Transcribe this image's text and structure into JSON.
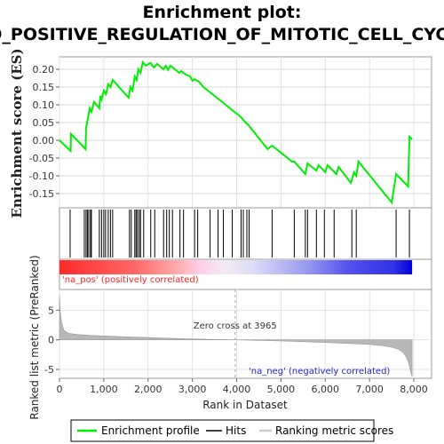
{
  "chart_data": [
    {
      "type": "line",
      "title": "Enrichment plot:",
      "subtitle": "GO_POSITIVE_REGULATION_OF_MITOTIC_CELL_CYCLE",
      "ylabel": "Enrichment score (ES)",
      "xlim": [
        0,
        8400
      ],
      "ylim": [
        -0.19,
        0.235
      ],
      "yticks": [
        -0.15,
        -0.1,
        -0.05,
        0.0,
        0.05,
        0.1,
        0.15,
        0.2
      ],
      "ytick_labels": [
        "-0.15",
        "-0.10",
        "-0.05",
        "0.00",
        "0.05",
        "0.10",
        "0.15",
        "0.20"
      ],
      "grid": true,
      "color": "#00ee00",
      "series": [
        {
          "name": "Enrichment profile",
          "x": [
            0,
            250,
            260,
            590,
            600,
            640,
            680,
            720,
            780,
            900,
            920,
            950,
            1000,
            1050,
            1100,
            1150,
            1200,
            1560,
            1600,
            1650,
            1700,
            1740,
            1780,
            1830,
            1880,
            1950,
            2050,
            2130,
            2200,
            2350,
            2400,
            2450,
            2500,
            2560,
            2700,
            2750,
            2850,
            2950,
            3000,
            3050,
            3150,
            3250,
            3400,
            3550,
            3700,
            3900,
            4100,
            4200,
            4250,
            4700,
            4800,
            5250,
            5300,
            5550,
            5600,
            5800,
            5850,
            6000,
            6050,
            6250,
            6300,
            6580,
            6650,
            6700,
            6750,
            7500,
            7600,
            7870,
            7900,
            7960
          ],
          "y": [
            0.0,
            -0.03,
            0.018,
            -0.025,
            0.035,
            0.06,
            0.09,
            0.08,
            0.108,
            0.09,
            0.125,
            0.115,
            0.14,
            0.13,
            0.158,
            0.15,
            0.17,
            0.12,
            0.15,
            0.14,
            0.18,
            0.17,
            0.2,
            0.19,
            0.22,
            0.21,
            0.218,
            0.205,
            0.215,
            0.2,
            0.21,
            0.198,
            0.21,
            0.205,
            0.19,
            0.195,
            0.185,
            0.18,
            0.168,
            0.172,
            0.165,
            0.15,
            0.135,
            0.12,
            0.105,
            0.085,
            0.065,
            0.05,
            0.045,
            -0.025,
            -0.015,
            -0.06,
            -0.06,
            -0.095,
            -0.065,
            -0.085,
            -0.07,
            -0.09,
            -0.07,
            -0.095,
            -0.075,
            -0.12,
            -0.09,
            -0.1,
            -0.06,
            -0.175,
            -0.095,
            -0.13,
            0.01,
            0.003
          ]
        }
      ]
    },
    {
      "type": "scatter",
      "name": "Hits",
      "x": [
        240,
        560,
        600,
        630,
        660,
        700,
        720,
        900,
        950,
        1000,
        1040,
        1100,
        1150,
        1200,
        1580,
        1620,
        1700,
        1730,
        1760,
        1800,
        1830,
        1900,
        2060,
        2150,
        2350,
        2420,
        2480,
        2550,
        2720,
        2800,
        3050,
        3120,
        3400,
        3580,
        3700,
        3900,
        4100,
        4150,
        4230,
        4280,
        4800,
        5300,
        5550,
        5600,
        5800,
        5980,
        6200,
        6600,
        6700,
        7600,
        7900
      ]
    },
    {
      "type": "heatmap",
      "name": "Ranking metric scores",
      "annotations": [
        "'na_pos' (positively correlated)",
        "'na_neg' (negatively correlated)"
      ],
      "colors": {
        "pos": "#ff3333",
        "neg": "#2222ee"
      }
    },
    {
      "type": "area",
      "ylabel": "Ranked list metric (PreRanked)",
      "xlabel": "Rank in Dataset",
      "xlim": [
        0,
        8400
      ],
      "ylim": [
        -6.5,
        8.5
      ],
      "yticks": [
        -5,
        0,
        5
      ],
      "xticks": [
        0,
        1000,
        2000,
        3000,
        4000,
        5000,
        6000,
        7000,
        8000
      ],
      "xtick_labels": [
        "0",
        "1,000",
        "2,000",
        "3,000",
        "4,000",
        "5,000",
        "6,000",
        "7,000",
        "8,000"
      ],
      "zero_cross": 3965,
      "zero_cross_label": "Zero cross at 3965",
      "series": [
        {
          "name": "Ranking metric scores",
          "x": [
            0,
            20,
            50,
            100,
            200,
            400,
            700,
            1000,
            1500,
            2000,
            2500,
            3000,
            3500,
            3965,
            4500,
            5000,
            5500,
            6000,
            6500,
            7000,
            7300,
            7500,
            7650,
            7750,
            7820,
            7870,
            7900,
            7930,
            7960
          ],
          "y": [
            7.5,
            4.5,
            2.8,
            1.6,
            1.1,
            0.9,
            0.75,
            0.65,
            0.5,
            0.38,
            0.26,
            0.15,
            0.06,
            0.0,
            -0.1,
            -0.2,
            -0.32,
            -0.45,
            -0.6,
            -0.8,
            -1.0,
            -1.25,
            -1.6,
            -2.1,
            -2.8,
            -3.6,
            -4.5,
            -5.5,
            -6.2
          ]
        }
      ]
    }
  ],
  "legend": {
    "items": [
      {
        "label": "Enrichment profile",
        "color": "#00ee00"
      },
      {
        "label": "Hits",
        "color": "#000000"
      },
      {
        "label": "Ranking metric scores",
        "color": "#cccccc"
      }
    ]
  }
}
